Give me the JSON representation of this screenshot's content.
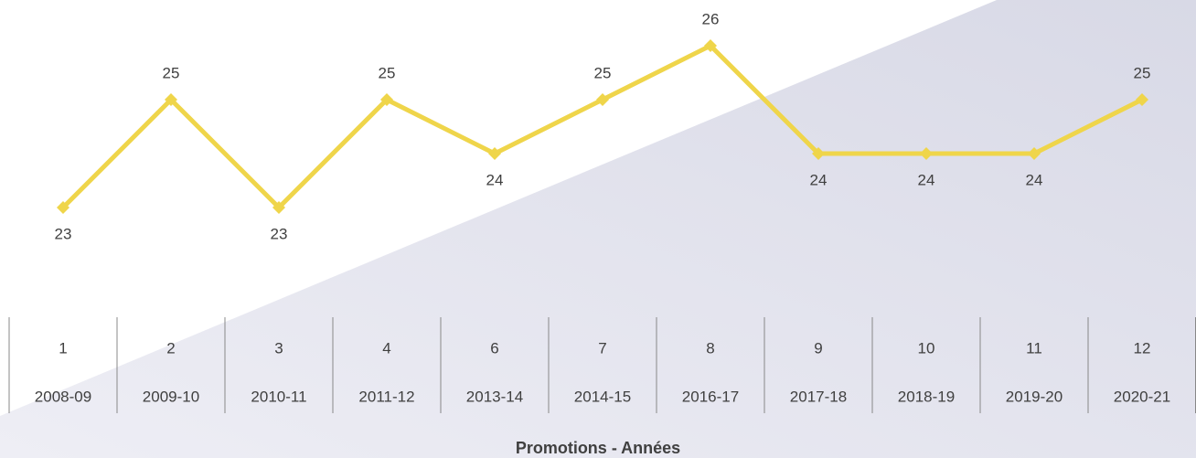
{
  "chart_data": {
    "type": "line",
    "x_label": "Promotions - Années",
    "promotions": [
      "1",
      "2",
      "3",
      "4",
      "6",
      "7",
      "8",
      "9",
      "10",
      "11",
      "12"
    ],
    "categories": [
      "2008-09",
      "2009-10",
      "2010-11",
      "2011-12",
      "2013-14",
      "2014-15",
      "2016-17",
      "2017-18",
      "2018-19",
      "2019-20",
      "2020-21"
    ],
    "series": [
      {
        "name": null,
        "color": "#efd54a",
        "values": [
          23,
          25,
          23,
          25,
          24,
          25,
          26,
          24,
          24,
          24,
          25
        ]
      }
    ]
  }
}
